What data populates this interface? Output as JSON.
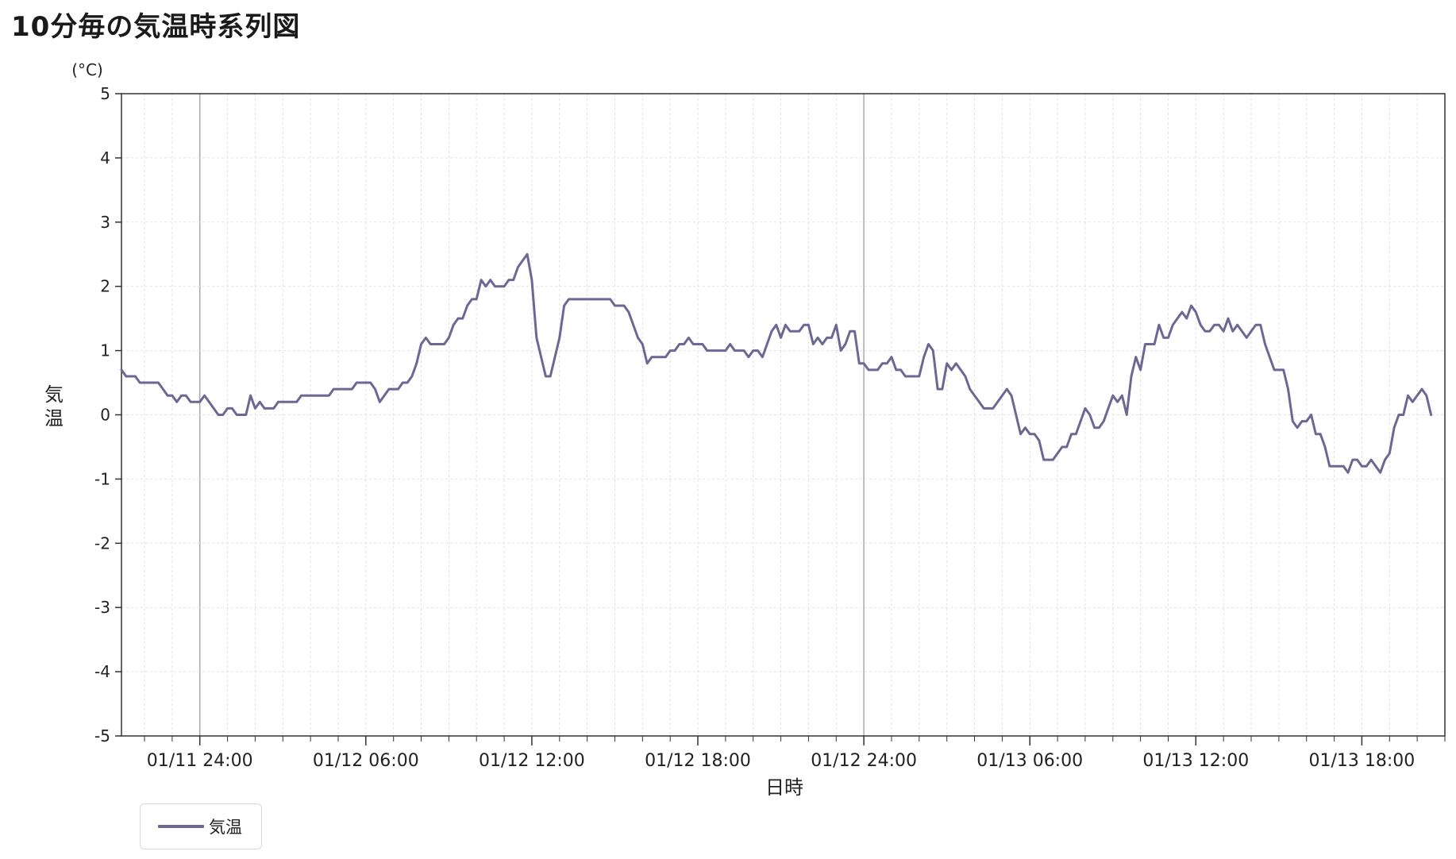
{
  "page": {
    "title": "10分毎の気温時系列図"
  },
  "colors": {
    "series": "#6b6893",
    "grid": "#e2e2e2",
    "axis": "#333333",
    "major_grid": "#a9a9a9"
  },
  "chart_data": {
    "type": "line",
    "title": "10分毎の気温時系列図",
    "xlabel": "日時",
    "ylabel": "気温",
    "yunit": "(°C)",
    "ylim": [
      -5,
      5
    ],
    "yticks": [
      5,
      4,
      3,
      2,
      1,
      0,
      -1,
      -2,
      -3,
      -4,
      -5
    ],
    "xlim": [
      "01/11 21:10",
      "01/13 21:00"
    ],
    "xticks": [
      "01/11 24:00",
      "01/12 06:00",
      "01/12 12:00",
      "01/12 18:00",
      "01/12 24:00",
      "01/13 06:00",
      "01/13 12:00",
      "01/13 18:00"
    ],
    "grid": true,
    "legend_position": "bottom-left",
    "series": [
      {
        "name": "気温",
        "start": "01/11 21:10",
        "interval_minutes": 10,
        "values": [
          0.7,
          0.6,
          0.6,
          0.6,
          0.5,
          0.5,
          0.5,
          0.5,
          0.5,
          0.4,
          0.3,
          0.3,
          0.2,
          0.3,
          0.3,
          0.2,
          0.2,
          0.2,
          0.3,
          0.2,
          0.1,
          0.0,
          0.0,
          0.1,
          0.1,
          0.0,
          0.0,
          0.0,
          0.3,
          0.1,
          0.2,
          0.1,
          0.1,
          0.1,
          0.2,
          0.2,
          0.2,
          0.2,
          0.2,
          0.3,
          0.3,
          0.3,
          0.3,
          0.3,
          0.3,
          0.3,
          0.4,
          0.4,
          0.4,
          0.4,
          0.4,
          0.5,
          0.5,
          0.5,
          0.5,
          0.4,
          0.2,
          0.3,
          0.4,
          0.4,
          0.4,
          0.5,
          0.5,
          0.6,
          0.8,
          1.1,
          1.2,
          1.1,
          1.1,
          1.1,
          1.1,
          1.2,
          1.4,
          1.5,
          1.5,
          1.7,
          1.8,
          1.8,
          2.1,
          2.0,
          2.1,
          2.0,
          2.0,
          2.0,
          2.1,
          2.1,
          2.3,
          2.4,
          2.5,
          2.1,
          1.2,
          0.9,
          0.6,
          0.6,
          0.9,
          1.2,
          1.7,
          1.8,
          1.8,
          1.8,
          1.8,
          1.8,
          1.8,
          1.8,
          1.8,
          1.8,
          1.8,
          1.7,
          1.7,
          1.7,
          1.6,
          1.4,
          1.2,
          1.1,
          0.8,
          0.9,
          0.9,
          0.9,
          0.9,
          1.0,
          1.0,
          1.1,
          1.1,
          1.2,
          1.1,
          1.1,
          1.1,
          1.0,
          1.0,
          1.0,
          1.0,
          1.0,
          1.1,
          1.0,
          1.0,
          1.0,
          0.9,
          1.0,
          1.0,
          0.9,
          1.1,
          1.3,
          1.4,
          1.2,
          1.4,
          1.3,
          1.3,
          1.3,
          1.4,
          1.4,
          1.1,
          1.2,
          1.1,
          1.2,
          1.2,
          1.4,
          1.0,
          1.1,
          1.3,
          1.3,
          0.8,
          0.8,
          0.7,
          0.7,
          0.7,
          0.8,
          0.8,
          0.9,
          0.7,
          0.7,
          0.6,
          0.6,
          0.6,
          0.6,
          0.9,
          1.1,
          1.0,
          0.4,
          0.4,
          0.8,
          0.7,
          0.8,
          0.7,
          0.6,
          0.4,
          0.3,
          0.2,
          0.1,
          0.1,
          0.1,
          0.2,
          0.3,
          0.4,
          0.3,
          0.0,
          -0.3,
          -0.2,
          -0.3,
          -0.3,
          -0.4,
          -0.7,
          -0.7,
          -0.7,
          -0.6,
          -0.5,
          -0.5,
          -0.3,
          -0.3,
          -0.1,
          0.1,
          0.0,
          -0.2,
          -0.2,
          -0.1,
          0.1,
          0.3,
          0.2,
          0.3,
          0.0,
          0.6,
          0.9,
          0.7,
          1.1,
          1.1,
          1.1,
          1.4,
          1.2,
          1.2,
          1.4,
          1.5,
          1.6,
          1.5,
          1.7,
          1.6,
          1.4,
          1.3,
          1.3,
          1.4,
          1.4,
          1.3,
          1.5,
          1.3,
          1.4,
          1.3,
          1.2,
          1.3,
          1.4,
          1.4,
          1.1,
          0.9,
          0.7,
          0.7,
          0.7,
          0.4,
          -0.1,
          -0.2,
          -0.1,
          -0.1,
          0.0,
          -0.3,
          -0.3,
          -0.5,
          -0.8,
          -0.8,
          -0.8,
          -0.8,
          -0.9,
          -0.7,
          -0.7,
          -0.8,
          -0.8,
          -0.7,
          -0.8,
          -0.9,
          -0.7,
          -0.6,
          -0.2,
          0.0,
          0.0,
          0.3,
          0.2,
          0.3,
          0.4,
          0.3,
          0.0
        ]
      }
    ]
  }
}
